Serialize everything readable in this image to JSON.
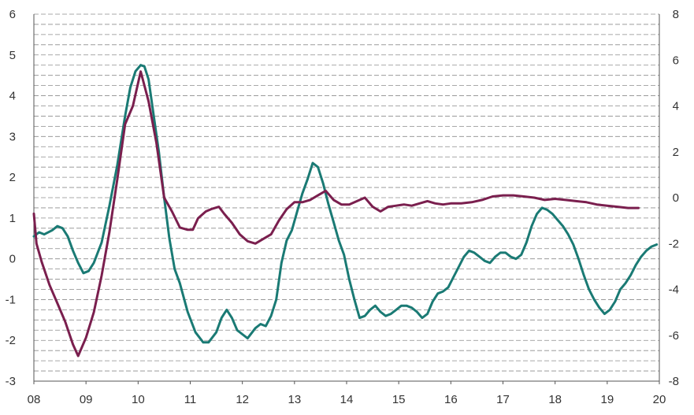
{
  "chart_data": {
    "type": "line",
    "title": "",
    "xlabel": "",
    "ylabel": "",
    "grid": true,
    "x_ticks": [
      "08",
      "09",
      "10",
      "11",
      "12",
      "13",
      "14",
      "15",
      "16",
      "17",
      "18",
      "19",
      "20"
    ],
    "y_left_ticks": [
      "6",
      "5",
      "4",
      "3",
      "2",
      "1",
      "0",
      "-1",
      "-2",
      "-3"
    ],
    "y_right_ticks": [
      "8",
      "6",
      "4",
      "2",
      "0",
      "-2",
      "-4",
      "-6",
      "-8"
    ],
    "ylim_left": [
      -3,
      6
    ],
    "ylim_right": [
      -8,
      8
    ],
    "xlim": [
      2008,
      2020
    ],
    "series": [
      {
        "axis": "left",
        "color": "#1a7a74",
        "x": [
          2008.0,
          2008.1,
          2008.2,
          2008.35,
          2008.45,
          2008.55,
          2008.65,
          2008.75,
          2008.85,
          2008.95,
          2009.05,
          2009.15,
          2009.3,
          2009.45,
          2009.6,
          2009.75,
          2009.85,
          2009.95,
          2010.05,
          2010.12,
          2010.2,
          2010.3,
          2010.4,
          2010.5,
          2010.6,
          2010.7,
          2010.8,
          2010.95,
          2011.1,
          2011.25,
          2011.35,
          2011.5,
          2011.6,
          2011.7,
          2011.8,
          2011.9,
          2012.0,
          2012.1,
          2012.25,
          2012.35,
          2012.45,
          2012.55,
          2012.65,
          2012.75,
          2012.85,
          2012.95,
          2013.05,
          2013.15,
          2013.25,
          2013.35,
          2013.45,
          2013.55,
          2013.65,
          2013.75,
          2013.85,
          2013.95,
          2014.05,
          2014.15,
          2014.25,
          2014.35,
          2014.45,
          2014.55,
          2014.65,
          2014.75,
          2014.85,
          2014.95,
          2015.05,
          2015.15,
          2015.25,
          2015.35,
          2015.45,
          2015.55,
          2015.65,
          2015.75,
          2015.85,
          2015.95,
          2016.05,
          2016.15,
          2016.25,
          2016.35,
          2016.45,
          2016.55,
          2016.65,
          2016.75,
          2016.85,
          2016.95,
          2017.05,
          2017.15,
          2017.25,
          2017.35,
          2017.45,
          2017.55,
          2017.65,
          2017.75,
          2017.85,
          2017.95,
          2018.05,
          2018.15,
          2018.25,
          2018.35,
          2018.45,
          2018.55,
          2018.65,
          2018.75,
          2018.85,
          2018.95,
          2019.05,
          2019.15,
          2019.25,
          2019.35,
          2019.45,
          2019.55,
          2019.65,
          2019.75,
          2019.85,
          2019.95
        ],
        "values": [
          0.55,
          0.65,
          0.6,
          0.7,
          0.8,
          0.75,
          0.55,
          0.2,
          -0.1,
          -0.35,
          -0.3,
          -0.1,
          0.4,
          1.3,
          2.3,
          3.5,
          4.2,
          4.6,
          4.75,
          4.72,
          4.4,
          3.5,
          2.6,
          1.5,
          0.5,
          -0.25,
          -0.6,
          -1.3,
          -1.8,
          -2.05,
          -2.05,
          -1.8,
          -1.45,
          -1.25,
          -1.45,
          -1.75,
          -1.85,
          -1.95,
          -1.7,
          -1.6,
          -1.65,
          -1.4,
          -1.0,
          -0.1,
          0.45,
          0.7,
          1.15,
          1.6,
          1.95,
          2.35,
          2.25,
          1.85,
          1.35,
          0.9,
          0.45,
          0.1,
          -0.5,
          -1.0,
          -1.45,
          -1.4,
          -1.25,
          -1.15,
          -1.3,
          -1.4,
          -1.35,
          -1.25,
          -1.15,
          -1.15,
          -1.2,
          -1.3,
          -1.45,
          -1.35,
          -1.05,
          -0.85,
          -0.8,
          -0.7,
          -0.45,
          -0.2,
          0.05,
          0.2,
          0.15,
          0.05,
          -0.05,
          -0.1,
          0.05,
          0.15,
          0.15,
          0.05,
          0.0,
          0.1,
          0.4,
          0.8,
          1.1,
          1.25,
          1.2,
          1.1,
          0.95,
          0.8,
          0.6,
          0.35,
          0.0,
          -0.4,
          -0.75,
          -1.0,
          -1.2,
          -1.35,
          -1.25,
          -1.05,
          -0.75,
          -0.6,
          -0.4,
          -0.15,
          0.05,
          0.2,
          0.3,
          0.35
        ]
      },
      {
        "axis": "right",
        "color": "#7a1f4e",
        "x": [
          2008.0,
          2008.05,
          2008.15,
          2008.3,
          2008.45,
          2008.6,
          2008.75,
          2008.85,
          2009.0,
          2009.15,
          2009.3,
          2009.45,
          2009.6,
          2009.75,
          2009.9,
          2010.05,
          2010.2,
          2010.35,
          2010.5,
          2010.65,
          2010.8,
          2010.95,
          2011.05,
          2011.15,
          2011.3,
          2011.4,
          2011.55,
          2011.65,
          2011.8,
          2011.95,
          2012.1,
          2012.25,
          2012.4,
          2012.55,
          2012.7,
          2012.85,
          2013.0,
          2013.15,
          2013.3,
          2013.45,
          2013.6,
          2013.75,
          2013.9,
          2014.05,
          2014.2,
          2014.35,
          2014.5,
          2014.65,
          2014.8,
          2014.95,
          2015.1,
          2015.25,
          2015.4,
          2015.55,
          2015.7,
          2015.85,
          2016.0,
          2016.2,
          2016.4,
          2016.6,
          2016.8,
          2017.0,
          2017.2,
          2017.4,
          2017.6,
          2017.8,
          2018.0,
          2018.2,
          2018.4,
          2018.6,
          2018.8,
          2019.0,
          2019.2,
          2019.4,
          2019.6
        ],
        "values": [
          -0.7,
          -2.0,
          -2.8,
          -3.8,
          -4.6,
          -5.4,
          -6.4,
          -6.9,
          -6.1,
          -5.0,
          -3.4,
          -1.5,
          0.8,
          3.2,
          4.0,
          5.5,
          4.2,
          2.4,
          0.0,
          -0.6,
          -1.3,
          -1.4,
          -1.4,
          -0.9,
          -0.6,
          -0.5,
          -0.4,
          -0.7,
          -1.1,
          -1.6,
          -1.9,
          -2.0,
          -1.8,
          -1.6,
          -1.0,
          -0.5,
          -0.2,
          -0.2,
          -0.1,
          0.1,
          0.3,
          -0.1,
          -0.3,
          -0.3,
          -0.15,
          0.0,
          -0.4,
          -0.6,
          -0.4,
          -0.35,
          -0.3,
          -0.35,
          -0.25,
          -0.15,
          -0.25,
          -0.3,
          -0.25,
          -0.25,
          -0.2,
          -0.1,
          0.05,
          0.1,
          0.1,
          0.05,
          0.0,
          -0.1,
          -0.05,
          -0.1,
          -0.15,
          -0.2,
          -0.3,
          -0.35,
          -0.4,
          -0.45,
          -0.45
        ]
      }
    ]
  },
  "colors": {
    "grid": "#8c8c8c",
    "axis": "#555555",
    "text": "#333333"
  }
}
